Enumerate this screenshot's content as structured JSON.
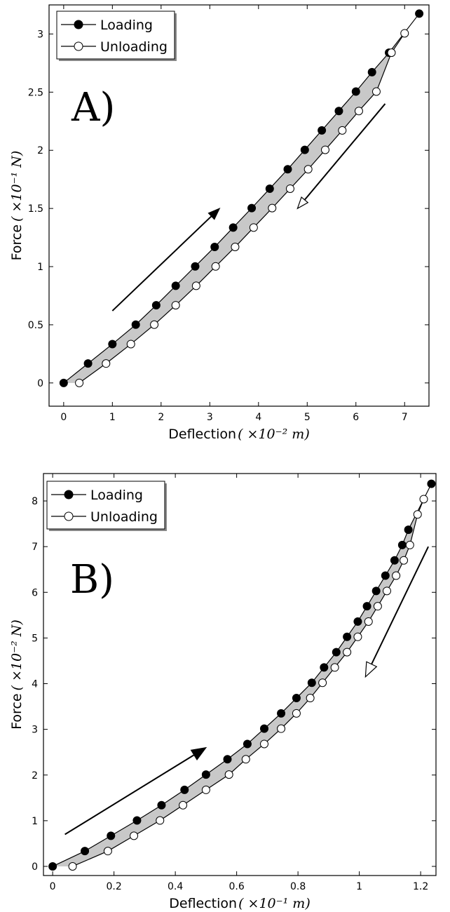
{
  "chart_data": [
    {
      "type": "line",
      "panel_label": "A)",
      "xlabel": "Deflection",
      "xlabel_unit": "( ×10⁻² m)",
      "ylabel": "Force",
      "ylabel_unit": "( ×10⁻¹ N)",
      "xlim": [
        -0.3,
        7.5
      ],
      "ylim": [
        -0.2,
        3.25
      ],
      "xticks": [
        0,
        1,
        2,
        3,
        4,
        5,
        6,
        7
      ],
      "xtick_labels": [
        "0",
        "1",
        "2",
        "3",
        "4",
        "5",
        "6",
        "7"
      ],
      "yticks": [
        0,
        0.5,
        1,
        1.5,
        2,
        2.5,
        3
      ],
      "ytick_labels": [
        "0",
        "0.5",
        "1",
        "1.5",
        "2",
        "2.5",
        "3"
      ],
      "legend": {
        "position": "top-left",
        "entries": [
          "Loading",
          "Unloading"
        ]
      },
      "series": [
        {
          "name": "Loading",
          "marker": "filled-circle",
          "x": [
            0,
            0.5,
            1.0,
            1.48,
            1.9,
            2.3,
            2.7,
            3.1,
            3.48,
            3.86,
            4.23,
            4.6,
            4.95,
            5.3,
            5.65,
            6.0,
            6.33,
            6.68,
            7.3
          ],
          "y": [
            0,
            0.167,
            0.334,
            0.501,
            0.668,
            0.835,
            1.002,
            1.169,
            1.336,
            1.503,
            1.67,
            1.837,
            2.004,
            2.171,
            2.338,
            2.505,
            2.672,
            2.839,
            3.175
          ]
        },
        {
          "name": "Unloading",
          "marker": "open-circle",
          "x": [
            0.32,
            0.87,
            1.38,
            1.86,
            2.3,
            2.72,
            3.12,
            3.52,
            3.9,
            4.28,
            4.65,
            5.02,
            5.37,
            5.72,
            6.06,
            6.42,
            6.73,
            7.0
          ],
          "y": [
            0,
            0.167,
            0.334,
            0.501,
            0.668,
            0.835,
            1.002,
            1.169,
            1.336,
            1.503,
            1.67,
            1.837,
            2.004,
            2.171,
            2.338,
            2.505,
            2.839,
            3.006
          ]
        }
      ],
      "arrows": [
        {
          "direction": "up",
          "from": [
            1.0,
            0.62
          ],
          "to": [
            3.2,
            1.5
          ],
          "head": "filled"
        },
        {
          "direction": "down",
          "from": [
            6.6,
            2.4
          ],
          "to": [
            4.8,
            1.5
          ],
          "head": "open"
        }
      ]
    },
    {
      "type": "line",
      "panel_label": "B)",
      "xlabel": "Deflection",
      "xlabel_unit": "( ×10⁻¹ m)",
      "ylabel": "Force",
      "ylabel_unit": "( ×10⁻² N)",
      "xlim": [
        -0.03,
        1.25
      ],
      "ylim": [
        -0.2,
        8.6
      ],
      "xticks": [
        0,
        0.2,
        0.4,
        0.6,
        0.8,
        1.0,
        1.2
      ],
      "xtick_labels": [
        "0",
        "0.2",
        "0.4",
        "0.6",
        "0.8",
        "1",
        "1.2"
      ],
      "yticks": [
        0,
        1,
        2,
        3,
        4,
        5,
        6,
        7,
        8
      ],
      "ytick_labels": [
        "0",
        "1",
        "2",
        "3",
        "4",
        "5",
        "6",
        "7",
        "8"
      ],
      "legend": {
        "position": "top-left",
        "entries": [
          "Loading",
          "Unloading"
        ]
      },
      "series": [
        {
          "name": "Loading",
          "marker": "filled-circle",
          "x": [
            0,
            0.105,
            0.19,
            0.275,
            0.355,
            0.43,
            0.5,
            0.57,
            0.635,
            0.69,
            0.745,
            0.795,
            0.845,
            0.885,
            0.925,
            0.96,
            0.995,
            1.025,
            1.055,
            1.085,
            1.115,
            1.14,
            1.16,
            1.235
          ],
          "y": [
            0,
            0.335,
            0.67,
            1.005,
            1.34,
            1.675,
            2.01,
            2.345,
            2.68,
            3.015,
            3.35,
            3.685,
            4.02,
            4.355,
            4.69,
            5.025,
            5.36,
            5.695,
            6.03,
            6.365,
            6.7,
            7.035,
            7.37,
            8.375
          ]
        },
        {
          "name": "Unloading",
          "marker": "open-circle",
          "x": [
            0.065,
            0.18,
            0.265,
            0.35,
            0.425,
            0.5,
            0.575,
            0.63,
            0.69,
            0.745,
            0.795,
            0.84,
            0.88,
            0.92,
            0.96,
            0.995,
            1.03,
            1.06,
            1.09,
            1.12,
            1.145,
            1.165,
            1.19,
            1.21
          ],
          "y": [
            0,
            0.335,
            0.67,
            1.005,
            1.34,
            1.675,
            2.01,
            2.345,
            2.68,
            3.015,
            3.35,
            3.685,
            4.02,
            4.355,
            4.69,
            5.025,
            5.36,
            5.695,
            6.03,
            6.365,
            6.7,
            7.035,
            7.705,
            8.04
          ]
        }
      ],
      "arrows": [
        {
          "direction": "up",
          "from": [
            0.04,
            0.7
          ],
          "to": [
            0.5,
            2.6
          ],
          "head": "filled"
        },
        {
          "direction": "down",
          "from": [
            1.225,
            7.0
          ],
          "to": [
            1.02,
            4.15
          ],
          "head": "open"
        }
      ]
    }
  ]
}
